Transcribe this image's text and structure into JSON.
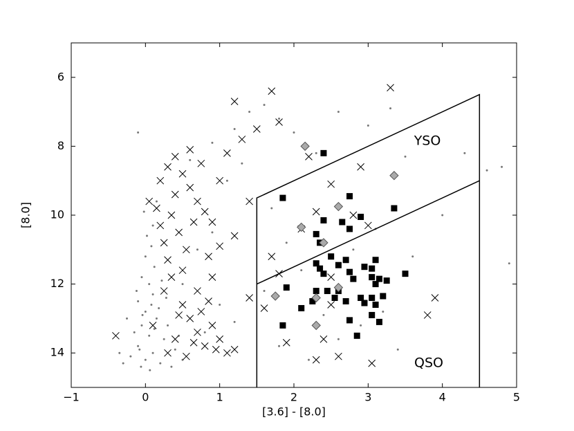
{
  "chart_data": {
    "type": "scatter",
    "xlabel": "[3.6] - [8.0]",
    "ylabel": "[8.0]",
    "annotations": [
      "YSO",
      "QSO"
    ],
    "xlim": [
      -1,
      5
    ],
    "ylim": [
      15,
      5
    ],
    "xticks": [
      {
        "value": -1,
        "label": "−1"
      },
      0,
      1,
      2,
      3,
      4,
      5
    ],
    "yticks": [
      6,
      8,
      10,
      12,
      14
    ],
    "grid": false,
    "series": [
      {
        "type": "scatter",
        "marker": "dot",
        "color": "#777777",
        "x": [
          0,
          0.1,
          -0.1,
          0.05,
          -0.05,
          0.15,
          0,
          -0.1,
          0.1,
          0.05,
          -0.05,
          0.12,
          0,
          0.08,
          -0.08,
          0.2,
          -0.2,
          0.25,
          -0.15,
          0.3,
          0.18,
          -0.12,
          0.22,
          0.02,
          0.1,
          -0.02,
          0.15,
          -0.3,
          0.35,
          0.4,
          -0.25,
          0.28,
          0.06,
          -0.35,
          0.5,
          0.45,
          0.12,
          -0.04,
          0.08,
          -0.06,
          0.5,
          0.7,
          0.9,
          1.1,
          1.3,
          1.2,
          1.4,
          1.6,
          1.8,
          2,
          2.3,
          2.6,
          3,
          3.3,
          3.5,
          1.7,
          1.9,
          2.1,
          2.4,
          2.6,
          2.9,
          3.2,
          3.4,
          2.2,
          1.8,
          1.6,
          2.8,
          3.1,
          3.6,
          4,
          4.3,
          4.6,
          4.8,
          4.9,
          1,
          0.8,
          1.2,
          -0.1,
          0.6,
          0.9
        ],
        "values": [
          14.2,
          14,
          13.8,
          13.5,
          13.2,
          13,
          12.8,
          12.5,
          12.3,
          12,
          11.8,
          11.5,
          11.2,
          10.9,
          13.9,
          14.3,
          14.1,
          13.6,
          13.4,
          13.2,
          12.7,
          12.2,
          11.9,
          10.6,
          10.3,
          9.9,
          9.6,
          14.3,
          14.4,
          13.9,
          13,
          12.4,
          14.5,
          14,
          14.2,
          13.5,
          13.3,
          12.9,
          12.6,
          14.4,
          12,
          11,
          10.5,
          9,
          8.5,
          7.5,
          7,
          6.8,
          7.2,
          7.6,
          8.2,
          7,
          7.4,
          6.9,
          8.3,
          9.8,
          10.8,
          11.6,
          12.9,
          13.6,
          13.2,
          12.8,
          13.9,
          14.2,
          13.8,
          12.2,
          11,
          10.4,
          11.2,
          10,
          8.2,
          8.7,
          8.6,
          11.4,
          12.6,
          13.4,
          13.1,
          7.6,
          8.4,
          7.9
        ]
      },
      {
        "type": "scatter",
        "marker": "cross",
        "color": "#000000",
        "x": [
          0.2,
          0.3,
          0.4,
          0.5,
          0.6,
          0.35,
          0.45,
          0.55,
          0.25,
          0.65,
          0.7,
          0.8,
          0.3,
          0.5,
          0.15,
          0.4,
          0.6,
          0.75,
          0.85,
          0.2,
          0.5,
          0.6,
          0.7,
          0.8,
          0.9,
          0.4,
          0.3,
          0.55,
          0.75,
          1,
          1.1,
          0.65,
          0.85,
          0.95,
          0.45,
          1,
          1.1,
          1.2,
          1.3,
          1.5,
          1.7,
          1.8,
          2.2,
          3.3,
          2.9,
          2.5,
          1.4,
          1.2,
          0.9,
          1,
          1.4,
          1.6,
          1.7,
          1.8,
          2.1,
          2.3,
          2.8,
          3,
          2.5,
          2.4,
          2.3,
          2.6,
          3.05,
          3.9,
          3.8,
          2.5,
          1.2,
          1.9,
          0.05,
          -0.4,
          0.1,
          0.25,
          0.35,
          0.9,
          0.7
        ],
        "values": [
          9,
          8.6,
          9.4,
          8.8,
          9.2,
          10,
          10.5,
          11,
          10.8,
          10.2,
          9.6,
          9.9,
          11.3,
          11.6,
          9.8,
          8.3,
          8.1,
          8.5,
          11.2,
          10.3,
          12.6,
          13,
          13.4,
          13.8,
          13.2,
          13.6,
          14,
          14.1,
          12.8,
          13.6,
          14,
          13.7,
          12.5,
          13.9,
          12.9,
          9,
          8.2,
          6.7,
          7.8,
          7.5,
          6.4,
          7.3,
          8.3,
          6.3,
          8.6,
          9.1,
          9.6,
          10.6,
          11.8,
          10.9,
          12.4,
          12.7,
          11.2,
          11.7,
          10.4,
          9.9,
          10,
          10.3,
          12.6,
          13.6,
          14.2,
          14.1,
          14.3,
          12.4,
          12.9,
          11.8,
          13.9,
          13.7,
          9.6,
          13.5,
          13.2,
          12.2,
          11.8,
          10.2,
          12.2
        ]
      },
      {
        "type": "scatter",
        "marker": "square",
        "color": "#000000",
        "x": [
          1.85,
          2.4,
          2.75,
          3.35,
          2.4,
          2.65,
          2.9,
          2.75,
          2.3,
          2.35,
          2.5,
          2.3,
          2.35,
          2.4,
          2.6,
          2.7,
          2.75,
          2.8,
          2.95,
          3.05,
          3.1,
          3.05,
          3.15,
          3.1,
          3.25,
          3.5,
          1.9,
          2.3,
          2.45,
          2.6,
          2.7,
          2.55,
          2.25,
          2.1,
          2.9,
          2.95,
          3.1,
          3.05,
          3.2,
          2.75,
          3.15,
          3.05,
          1.85,
          2.85
        ],
        "values": [
          9.5,
          8.2,
          9.45,
          9.8,
          10.15,
          10.2,
          10.05,
          10.4,
          10.55,
          10.8,
          11.2,
          11.4,
          11.55,
          11.7,
          11.45,
          11.3,
          11.65,
          11.85,
          11.5,
          11.55,
          11.3,
          11.8,
          11.85,
          12,
          11.9,
          11.7,
          12.1,
          12.2,
          12.2,
          12.2,
          12.5,
          12.4,
          12.5,
          12.7,
          12.4,
          12.55,
          12.6,
          12.4,
          12.35,
          13.05,
          13.1,
          12.9,
          13.2,
          13.5
        ]
      },
      {
        "type": "scatter",
        "marker": "diamond",
        "color": "#aaaaaa",
        "edgecolor": "#555555",
        "x": [
          2.15,
          3.35,
          2.6,
          2.1,
          2.4,
          2.6,
          2.3,
          1.75,
          2.3
        ],
        "values": [
          8,
          8.85,
          9.75,
          10.35,
          10.8,
          12.1,
          12.4,
          12.35,
          13.2
        ]
      },
      {
        "type": "line",
        "color": "#000000",
        "x": [
          1.5,
          1.5,
          4.5,
          4.5
        ],
        "values": [
          15,
          9.5,
          6.5,
          15
        ]
      },
      {
        "type": "line",
        "color": "#000000",
        "x": [
          1.5,
          4.5
        ],
        "values": [
          12,
          9
        ]
      }
    ]
  }
}
